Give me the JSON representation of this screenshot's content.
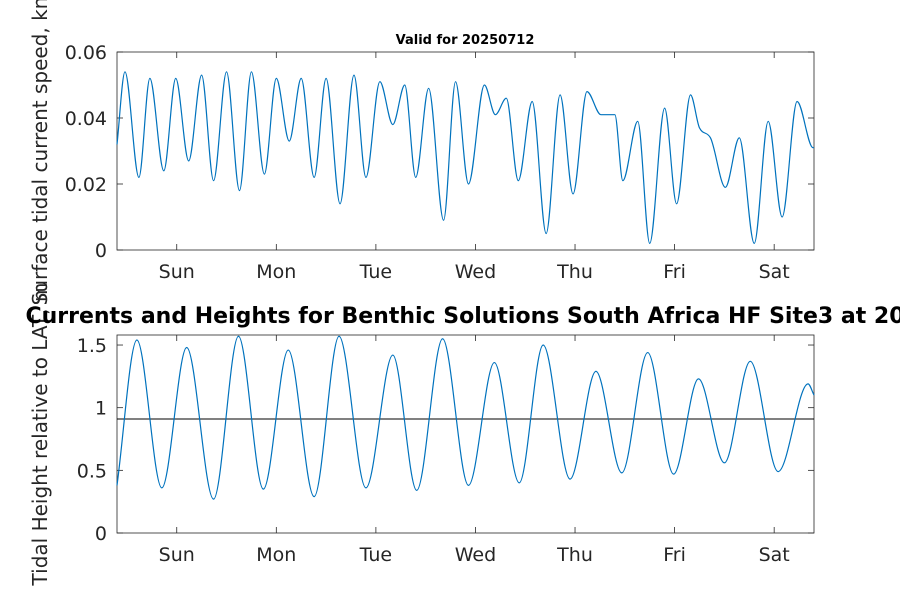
{
  "figure": {
    "main_title": "Currents and Heights for Benthic Solutions South Africa HF Site3 at 20",
    "subtitle": "Valid for 20250712"
  },
  "chart_data": [
    {
      "type": "line",
      "title": "Valid for 20250712",
      "xlabel": "",
      "ylabel": "Surface tidal current speed, kn",
      "x_unit": "days",
      "xlim": [
        0,
        7
      ],
      "ylim": [
        0,
        0.06
      ],
      "yticks": [
        0,
        0.02,
        0.04,
        0.06
      ],
      "ytick_labels": [
        "0",
        "0.02",
        "0.04",
        "0.06"
      ],
      "xticks": [
        0.6,
        1.6,
        2.6,
        3.6,
        4.6,
        5.6,
        6.6
      ],
      "xtick_labels": [
        "Sun",
        "Mon",
        "Tue",
        "Wed",
        "Thu",
        "Fri",
        "Sat"
      ],
      "line_color": "#0072BD",
      "series": [
        {
          "x": [
            0.0,
            0.08,
            0.22,
            0.33,
            0.47,
            0.59,
            0.72,
            0.85,
            0.97,
            1.1,
            1.23,
            1.35,
            1.48,
            1.6,
            1.73,
            1.85,
            1.98,
            2.1,
            2.24,
            2.38,
            2.5,
            2.64,
            2.77,
            2.89,
            3.0,
            3.13,
            3.28,
            3.4,
            3.53,
            3.69,
            3.8,
            3.91,
            4.03,
            4.17,
            4.31,
            4.45,
            4.58,
            4.72,
            4.86,
            5.0,
            5.08,
            5.23,
            5.35,
            5.5,
            5.62,
            5.76,
            5.85,
            5.96,
            6.11,
            6.25,
            6.4,
            6.54,
            6.68,
            6.83,
            6.99,
            7.0
          ],
          "y": [
            0.032,
            0.054,
            0.022,
            0.052,
            0.024,
            0.052,
            0.027,
            0.053,
            0.021,
            0.054,
            0.018,
            0.054,
            0.023,
            0.052,
            0.033,
            0.052,
            0.022,
            0.052,
            0.014,
            0.053,
            0.022,
            0.051,
            0.038,
            0.05,
            0.022,
            0.049,
            0.009,
            0.051,
            0.02,
            0.05,
            0.041,
            0.046,
            0.021,
            0.045,
            0.005,
            0.047,
            0.017,
            0.048,
            0.041,
            0.041,
            0.021,
            0.039,
            0.002,
            0.043,
            0.014,
            0.047,
            0.037,
            0.034,
            0.019,
            0.034,
            0.002,
            0.039,
            0.01,
            0.045,
            0.031,
            0.031
          ]
        }
      ]
    },
    {
      "type": "line",
      "title": "",
      "xlabel": "",
      "ylabel": "Tidal Height relative to LAT, m",
      "x_unit": "days",
      "xlim": [
        0,
        7
      ],
      "ylim": [
        0,
        1.58
      ],
      "yticks": [
        0,
        0.5,
        1,
        1.5
      ],
      "ytick_labels": [
        "0",
        "0.5",
        "1",
        "1.5"
      ],
      "xticks": [
        0.6,
        1.6,
        2.6,
        3.6,
        4.6,
        5.6,
        6.6
      ],
      "xtick_labels": [
        "Sun",
        "Mon",
        "Tue",
        "Wed",
        "Thu",
        "Fri",
        "Sat"
      ],
      "line_color": "#0072BD",
      "reference_line": 0.91,
      "reference_color": "#000000",
      "series": [
        {
          "x": [
            0.0,
            0.2,
            0.45,
            0.7,
            0.97,
            1.22,
            1.47,
            1.72,
            1.98,
            2.23,
            2.5,
            2.77,
            3.01,
            3.27,
            3.53,
            3.79,
            4.04,
            4.28,
            4.55,
            4.81,
            5.07,
            5.33,
            5.59,
            5.84,
            6.1,
            6.36,
            6.64,
            6.94,
            7.0
          ],
          "y": [
            0.38,
            1.54,
            0.36,
            1.48,
            0.27,
            1.57,
            0.35,
            1.46,
            0.29,
            1.57,
            0.36,
            1.42,
            0.34,
            1.55,
            0.38,
            1.36,
            0.4,
            1.5,
            0.43,
            1.29,
            0.48,
            1.44,
            0.47,
            1.23,
            0.56,
            1.37,
            0.49,
            1.19,
            1.1
          ]
        }
      ]
    }
  ]
}
